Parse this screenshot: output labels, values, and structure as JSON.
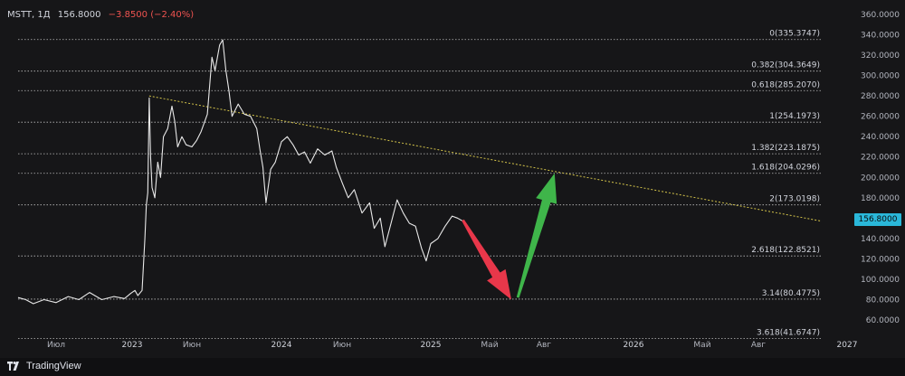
{
  "ticker": {
    "symbol": "MSTT, 1Д",
    "price": "156.8000",
    "change": "−3.8500 (−2.40%)"
  },
  "colors": {
    "background": "#161618",
    "price_line": "#e8e8e8",
    "fib_line": "#bdbdbd",
    "trend_line": "#d4c44a",
    "down_arrow": "#e8374a",
    "up_arrow": "#3fb54a",
    "price_badge": "#2ab7d9"
  },
  "price_badge": "156.8000",
  "branding": {
    "name": "TradingView"
  },
  "chart_data": {
    "type": "line",
    "ylim": [
      40,
      360
    ],
    "y_ticks": [
      "360.0000",
      "340.0000",
      "320.0000",
      "300.0000",
      "280.0000",
      "260.0000",
      "240.0000",
      "220.0000",
      "200.0000",
      "180.0000",
      "160.0000",
      "140.0000",
      "120.0000",
      "100.0000",
      "80.0000",
      "60.0000"
    ],
    "y_tick_values": [
      360,
      340,
      320,
      300,
      280,
      260,
      240,
      220,
      200,
      180,
      160,
      140,
      120,
      100,
      80,
      60
    ],
    "x_ticks": [
      {
        "label": "Июл",
        "x": 2022.5
      },
      {
        "label": "2023",
        "x": 2023.0
      },
      {
        "label": "Июн",
        "x": 2023.42
      },
      {
        "label": "2024",
        "x": 2024.0
      },
      {
        "label": "Июн",
        "x": 2024.42
      },
      {
        "label": "2025",
        "x": 2025.0
      },
      {
        "label": "Май",
        "x": 2025.33
      },
      {
        "label": "Авг",
        "x": 2025.58
      },
      {
        "label": "2026",
        "x": 2026.0
      },
      {
        "label": "Май",
        "x": 2026.33
      },
      {
        "label": "Авг",
        "x": 2026.58
      },
      {
        "label": "2027",
        "x": 2027.0
      }
    ],
    "fib_levels": [
      {
        "label": "0(335.3747)",
        "value": 335.3747
      },
      {
        "label": "0.382(304.3649)",
        "value": 304.3649
      },
      {
        "label": "0.618(285.2070)",
        "value": 285.207
      },
      {
        "label": "1(254.1973)",
        "value": 254.1973
      },
      {
        "label": "1.382(223.1875)",
        "value": 223.1875
      },
      {
        "label": "1.618(204.0296)",
        "value": 204.0296
      },
      {
        "label": "2(173.0198)",
        "value": 173.0198
      },
      {
        "label": "2.618(122.8521)",
        "value": 122.8521
      },
      {
        "label": "3.14(80.4775)",
        "value": 80.4775
      },
      {
        "label": "3.618(41.6747)",
        "value": 41.6747
      }
    ],
    "fib_range": [
      2022.25,
      2026.88
    ],
    "trend_line": [
      [
        2023.12,
        280
      ],
      [
        2026.88,
        157
      ]
    ],
    "arrows": [
      {
        "from": [
          2025.18,
          158
        ],
        "to": [
          2025.43,
          80
        ],
        "color": "down"
      },
      {
        "from": [
          2025.46,
          82
        ],
        "to": [
          2025.63,
          204
        ],
        "color": "up"
      }
    ],
    "series": [
      {
        "points": [
          [
            2022.25,
            82
          ],
          [
            2022.3,
            80
          ],
          [
            2022.35,
            76
          ],
          [
            2022.42,
            80
          ],
          [
            2022.5,
            77
          ],
          [
            2022.58,
            83
          ],
          [
            2022.65,
            80
          ],
          [
            2022.72,
            87
          ],
          [
            2022.8,
            80
          ],
          [
            2022.88,
            83
          ],
          [
            2022.95,
            81
          ],
          [
            2022.99,
            86
          ],
          [
            2023.02,
            89
          ],
          [
            2023.04,
            84
          ],
          [
            2023.07,
            89
          ],
          [
            2023.09,
            140
          ],
          [
            2023.1,
            173
          ],
          [
            2023.11,
            185
          ],
          [
            2023.12,
            278
          ],
          [
            2023.13,
            220
          ],
          [
            2023.14,
            190
          ],
          [
            2023.16,
            180
          ],
          [
            2023.18,
            215
          ],
          [
            2023.2,
            200
          ],
          [
            2023.22,
            240
          ],
          [
            2023.25,
            248
          ],
          [
            2023.28,
            270
          ],
          [
            2023.3,
            255
          ],
          [
            2023.32,
            230
          ],
          [
            2023.35,
            240
          ],
          [
            2023.38,
            232
          ],
          [
            2023.42,
            230
          ],
          [
            2023.45,
            236
          ],
          [
            2023.48,
            245
          ],
          [
            2023.52,
            262
          ],
          [
            2023.55,
            318
          ],
          [
            2023.57,
            305
          ],
          [
            2023.6,
            330
          ],
          [
            2023.62,
            335
          ],
          [
            2023.64,
            305
          ],
          [
            2023.66,
            285
          ],
          [
            2023.68,
            260
          ],
          [
            2023.72,
            272
          ],
          [
            2023.76,
            262
          ],
          [
            2023.8,
            260
          ],
          [
            2023.84,
            248
          ],
          [
            2023.86,
            228
          ],
          [
            2023.88,
            210
          ],
          [
            2023.9,
            175
          ],
          [
            2023.93,
            208
          ],
          [
            2023.96,
            215
          ],
          [
            2024.0,
            235
          ],
          [
            2024.04,
            240
          ],
          [
            2024.08,
            232
          ],
          [
            2024.12,
            222
          ],
          [
            2024.16,
            225
          ],
          [
            2024.2,
            214
          ],
          [
            2024.25,
            228
          ],
          [
            2024.3,
            222
          ],
          [
            2024.35,
            226
          ],
          [
            2024.38,
            210
          ],
          [
            2024.42,
            195
          ],
          [
            2024.46,
            180
          ],
          [
            2024.5,
            188
          ],
          [
            2024.55,
            165
          ],
          [
            2024.6,
            175
          ],
          [
            2024.63,
            150
          ],
          [
            2024.67,
            160
          ],
          [
            2024.7,
            132
          ],
          [
            2024.74,
            155
          ],
          [
            2024.78,
            178
          ],
          [
            2024.82,
            165
          ],
          [
            2024.86,
            155
          ],
          [
            2024.9,
            152
          ],
          [
            2024.94,
            130
          ],
          [
            2024.97,
            118
          ],
          [
            2025.0,
            135
          ],
          [
            2025.04,
            140
          ],
          [
            2025.08,
            152
          ],
          [
            2025.12,
            162
          ],
          [
            2025.15,
            160
          ],
          [
            2025.18,
            157
          ]
        ]
      }
    ]
  }
}
